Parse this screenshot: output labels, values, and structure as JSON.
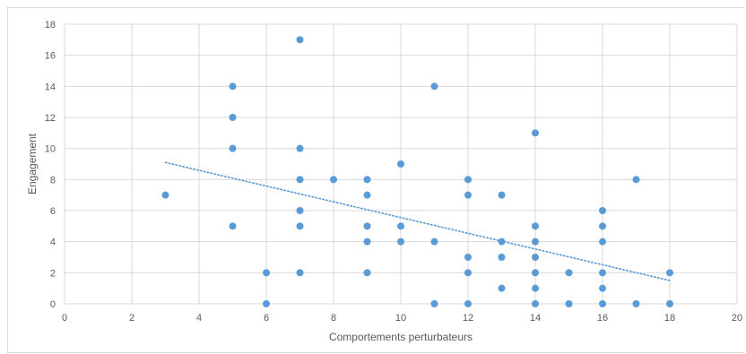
{
  "chart_data": {
    "type": "scatter",
    "xlabel": "Comportements perturbateurs",
    "ylabel": "Engagement",
    "xlim": [
      0,
      20
    ],
    "ylim": [
      0,
      18
    ],
    "x_ticks": [
      "0",
      "2",
      "4",
      "6",
      "8",
      "10",
      "12",
      "14",
      "16",
      "18",
      "20"
    ],
    "y_ticks": [
      "0",
      "2",
      "4",
      "6",
      "8",
      "10",
      "12",
      "14",
      "16",
      "18"
    ],
    "grid": true,
    "legend": "none",
    "point_color": "#5b9bd5",
    "trendline": {
      "type": "linear",
      "style": "dotted",
      "color": "#5b9bd5",
      "x_start": 3,
      "y_start": 9.1,
      "x_end": 18,
      "y_end": 1.5
    },
    "points": [
      [
        3,
        7
      ],
      [
        5,
        14
      ],
      [
        5,
        12
      ],
      [
        5,
        10
      ],
      [
        5,
        5
      ],
      [
        6,
        2
      ],
      [
        6,
        0
      ],
      [
        7,
        17
      ],
      [
        7,
        10
      ],
      [
        7,
        8
      ],
      [
        7,
        6
      ],
      [
        7,
        5
      ],
      [
        7,
        2
      ],
      [
        8,
        8
      ],
      [
        9,
        8
      ],
      [
        9,
        7
      ],
      [
        9,
        5
      ],
      [
        9,
        4
      ],
      [
        9,
        2
      ],
      [
        10,
        9
      ],
      [
        10,
        5
      ],
      [
        10,
        4
      ],
      [
        11,
        14
      ],
      [
        11,
        4
      ],
      [
        11,
        0
      ],
      [
        12,
        8
      ],
      [
        12,
        7
      ],
      [
        12,
        3
      ],
      [
        12,
        2
      ],
      [
        12,
        0
      ],
      [
        13,
        7
      ],
      [
        13,
        4
      ],
      [
        13,
        3
      ],
      [
        13,
        1
      ],
      [
        14,
        11
      ],
      [
        14,
        5
      ],
      [
        14,
        4
      ],
      [
        14,
        3
      ],
      [
        14,
        2
      ],
      [
        14,
        1
      ],
      [
        14,
        0
      ],
      [
        15,
        2
      ],
      [
        15,
        0
      ],
      [
        16,
        6
      ],
      [
        16,
        5
      ],
      [
        16,
        4
      ],
      [
        16,
        2
      ],
      [
        16,
        1
      ],
      [
        16,
        0
      ],
      [
        17,
        8
      ],
      [
        17,
        0
      ],
      [
        18,
        2
      ],
      [
        18,
        0
      ]
    ]
  }
}
